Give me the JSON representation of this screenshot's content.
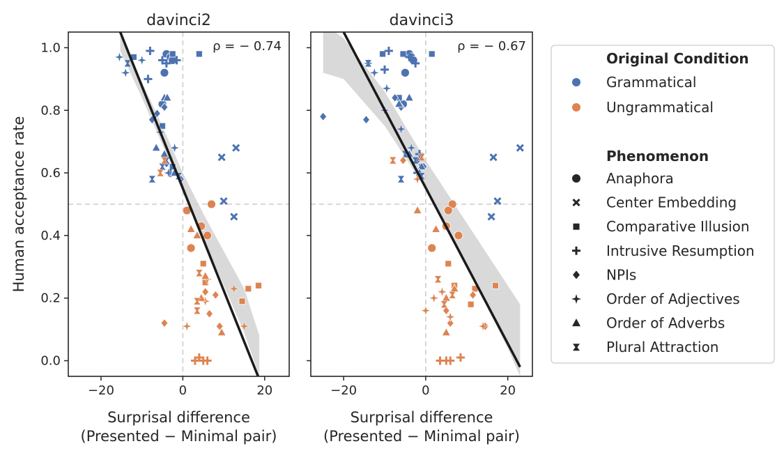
{
  "chart_data": [
    {
      "type": "scatter",
      "title": "davinci2",
      "xlabel": "Surprisal difference\n(Presented − Minimal pair)",
      "ylabel": "Human acceptance rate",
      "annotation": "ρ = − 0.74",
      "xlim": [
        -28,
        26
      ],
      "ylim": [
        -0.05,
        1.05
      ],
      "xticks": [
        "−20",
        "0",
        "20"
      ],
      "yticks": [
        "0.0",
        "0.2",
        "0.4",
        "0.6",
        "0.8",
        "1.0"
      ],
      "reference_lines": {
        "x": 0,
        "y": 0.5
      },
      "fit_line": {
        "x": [
          -15.3,
          18.7
        ],
        "y": [
          1.05,
          -0.06
        ]
      },
      "confidence_band": {
        "x": [
          -15.3,
          -10,
          -5,
          0,
          5,
          10,
          15,
          18.7
        ],
        "upper": [
          1.05,
          0.89,
          0.75,
          0.6,
          0.47,
          0.35,
          0.23,
          0.08
        ],
        "lower": [
          0.99,
          0.84,
          0.69,
          0.54,
          0.39,
          0.24,
          0.09,
          -0.05
        ]
      },
      "series": [
        {
          "condition": "Grammatical",
          "points": [
            [
              -4,
              0.98,
              "Anaphora"
            ],
            [
              -3,
              0.97,
              "Anaphora"
            ],
            [
              -4.5,
              0.92,
              "Anaphora"
            ],
            [
              -5,
              0.82,
              "Anaphora"
            ],
            [
              -2.5,
              0.96,
              "Anaphora"
            ],
            [
              13,
              0.68,
              "Center Embedding"
            ],
            [
              9.5,
              0.65,
              "Center Embedding"
            ],
            [
              10,
              0.51,
              "Center Embedding"
            ],
            [
              12.5,
              0.46,
              "Center Embedding"
            ],
            [
              -12,
              0.97,
              "Comparative Illusion"
            ],
            [
              -2.5,
              0.98,
              "Comparative Illusion"
            ],
            [
              4,
              0.98,
              "Comparative Illusion"
            ],
            [
              -5,
              0.75,
              "Comparative Illusion"
            ],
            [
              -2.5,
              0.62,
              "Comparative Illusion"
            ],
            [
              -8,
              0.99,
              "Intrusive Resumption"
            ],
            [
              -8.5,
              0.9,
              "Intrusive Resumption"
            ],
            [
              -5,
              0.96,
              "Intrusive Resumption"
            ],
            [
              -4,
              0.95,
              "Intrusive Resumption"
            ],
            [
              -1.5,
              0.96,
              "Intrusive Resumption"
            ],
            [
              -3,
              0.6,
              "Intrusive Resumption"
            ],
            [
              -7,
              0.78,
              "NPIs"
            ],
            [
              -6.3,
              0.79,
              "NPIs"
            ],
            [
              -7.5,
              0.77,
              "NPIs"
            ],
            [
              -4.5,
              0.81,
              "NPIs"
            ],
            [
              -4,
              0.63,
              "NPIs"
            ],
            [
              -0.5,
              0.58,
              "NPIs"
            ],
            [
              -15.5,
              0.97,
              "Order of Adjectives"
            ],
            [
              -14,
              0.92,
              "Order of Adjectives"
            ],
            [
              -10,
              0.96,
              "Order of Adjectives"
            ],
            [
              -5.5,
              0.73,
              "Order of Adjectives"
            ],
            [
              -2,
              0.68,
              "Order of Adjectives"
            ],
            [
              -3.5,
              0.6,
              "Order of Adjectives"
            ],
            [
              -4.5,
              0.84,
              "Order of Adverbs"
            ],
            [
              -3.8,
              0.84,
              "Order of Adverbs"
            ],
            [
              -6.5,
              0.68,
              "Order of Adverbs"
            ],
            [
              -4.5,
              0.66,
              "Order of Adverbs"
            ],
            [
              -2,
              0.6,
              "Order of Adverbs"
            ],
            [
              -13.5,
              0.95,
              "Plural Attraction"
            ],
            [
              -7.5,
              0.58,
              "Plural Attraction"
            ],
            [
              -4,
              0.64,
              "Plural Attraction"
            ],
            [
              -1,
              0.59,
              "Plural Attraction"
            ],
            [
              -5,
              0.62,
              "Plural Attraction"
            ]
          ]
        },
        {
          "condition": "Ungrammatical",
          "points": [
            [
              7,
              0.5,
              "Anaphora"
            ],
            [
              1,
              0.48,
              "Anaphora"
            ],
            [
              4.5,
              0.43,
              "Anaphora"
            ],
            [
              6,
              0.4,
              "Anaphora"
            ],
            [
              2,
              0.36,
              "Anaphora"
            ],
            [
              5,
              0.31,
              "Comparative Illusion"
            ],
            [
              18.5,
              0.24,
              "Comparative Illusion"
            ],
            [
              16,
              0.23,
              "Comparative Illusion"
            ],
            [
              14.5,
              0.19,
              "Comparative Illusion"
            ],
            [
              5.5,
              0.25,
              "Comparative Illusion"
            ],
            [
              4,
              0.01,
              "Intrusive Resumption"
            ],
            [
              5,
              0.0,
              "Intrusive Resumption"
            ],
            [
              6,
              0.0,
              "Intrusive Resumption"
            ],
            [
              3,
              0.0,
              "Intrusive Resumption"
            ],
            [
              -4.5,
              0.12,
              "NPIs"
            ],
            [
              8,
              0.21,
              "NPIs"
            ],
            [
              9,
              0.11,
              "NPIs"
            ],
            [
              6.5,
              0.15,
              "NPIs"
            ],
            [
              5.5,
              0.22,
              "NPIs"
            ],
            [
              12.5,
              0.23,
              "Order of Adjectives"
            ],
            [
              15,
              0.11,
              "Order of Adjectives"
            ],
            [
              4.5,
              0.2,
              "Order of Adjectives"
            ],
            [
              1,
              0.11,
              "Order of Adjectives"
            ],
            [
              6,
              0.26,
              "Order of Adjectives"
            ],
            [
              5.5,
              0.19,
              "Order of Adjectives"
            ],
            [
              2,
              0.42,
              "Order of Adverbs"
            ],
            [
              3.5,
              0.4,
              "Order of Adverbs"
            ],
            [
              4.5,
              0.2,
              "Order of Adverbs"
            ],
            [
              9.5,
              0.09,
              "Order of Adverbs"
            ],
            [
              5.5,
              0.27,
              "Order of Adverbs"
            ],
            [
              -4.5,
              0.64,
              "Plural Attraction"
            ],
            [
              -5.5,
              0.6,
              "Plural Attraction"
            ],
            [
              3.5,
              0.16,
              "Plural Attraction"
            ],
            [
              4,
              0.28,
              "Plural Attraction"
            ],
            [
              3.5,
              0.19,
              "Plural Attraction"
            ]
          ]
        }
      ]
    },
    {
      "type": "scatter",
      "title": "davinci3",
      "xlabel": "Surprisal difference\n(Presented − Minimal pair)",
      "ylabel": "",
      "annotation": "ρ = − 0.67",
      "xlim": [
        -28,
        26
      ],
      "ylim": [
        -0.05,
        1.05
      ],
      "xticks": [
        "−20",
        "0",
        "20"
      ],
      "yticks": [
        "0.0",
        "0.2",
        "0.4",
        "0.6",
        "0.8",
        "1.0"
      ],
      "reference_lines": {
        "x": 0,
        "y": 0.5
      },
      "fit_line": {
        "x": [
          -20,
          23
        ],
        "y": [
          1.05,
          -0.02
        ]
      },
      "confidence_band": {
        "x": [
          -25,
          -20,
          -10,
          0,
          10,
          20,
          23
        ],
        "upper": [
          1.08,
          1.03,
          0.86,
          0.64,
          0.44,
          0.24,
          0.18
        ],
        "lower": [
          0.92,
          0.9,
          0.75,
          0.55,
          0.3,
          0.04,
          -0.05
        ]
      },
      "series": [
        {
          "condition": "Grammatical",
          "points": [
            [
              -4,
              0.98,
              "Anaphora"
            ],
            [
              -3.5,
              0.97,
              "Anaphora"
            ],
            [
              -5,
              0.92,
              "Anaphora"
            ],
            [
              -5.5,
              0.82,
              "Anaphora"
            ],
            [
              -3,
              0.96,
              "Anaphora"
            ],
            [
              23,
              0.68,
              "Center Embedding"
            ],
            [
              16.5,
              0.65,
              "Center Embedding"
            ],
            [
              17.5,
              0.51,
              "Center Embedding"
            ],
            [
              16,
              0.46,
              "Center Embedding"
            ],
            [
              -10.5,
              0.98,
              "Comparative Illusion"
            ],
            [
              -5.5,
              0.98,
              "Comparative Illusion"
            ],
            [
              1.5,
              0.98,
              "Comparative Illusion"
            ],
            [
              -6.5,
              0.84,
              "Comparative Illusion"
            ],
            [
              -1,
              0.62,
              "Comparative Illusion"
            ],
            [
              -9,
              0.99,
              "Intrusive Resumption"
            ],
            [
              -10,
              0.93,
              "Intrusive Resumption"
            ],
            [
              -4,
              0.97,
              "Intrusive Resumption"
            ],
            [
              -2.5,
              0.95,
              "Intrusive Resumption"
            ],
            [
              -1.5,
              0.66,
              "Intrusive Resumption"
            ],
            [
              -2,
              0.6,
              "Intrusive Resumption"
            ],
            [
              -25,
              0.78,
              "NPIs"
            ],
            [
              -14.5,
              0.77,
              "NPIs"
            ],
            [
              -7.5,
              0.84,
              "NPIs"
            ],
            [
              -6,
              0.81,
              "NPIs"
            ],
            [
              -2,
              0.64,
              "NPIs"
            ],
            [
              -0.5,
              0.62,
              "NPIs"
            ],
            [
              -12.5,
              0.92,
              "Order of Adjectives"
            ],
            [
              -14,
              0.95,
              "Order of Adjectives"
            ],
            [
              -9.5,
              0.87,
              "Order of Adjectives"
            ],
            [
              -10,
              0.8,
              "Order of Adjectives"
            ],
            [
              -6,
              0.74,
              "Order of Adjectives"
            ],
            [
              -3.5,
              0.68,
              "Order of Adjectives"
            ],
            [
              -4,
              0.84,
              "Order of Adverbs"
            ],
            [
              -6.5,
              0.82,
              "Order of Adverbs"
            ],
            [
              -4,
              0.66,
              "Order of Adverbs"
            ],
            [
              -1,
              0.62,
              "Order of Adverbs"
            ],
            [
              -1.5,
              0.6,
              "Order of Adverbs"
            ],
            [
              -14,
              0.95,
              "Plural Attraction"
            ],
            [
              -6,
              0.58,
              "Plural Attraction"
            ],
            [
              -2.5,
              0.64,
              "Plural Attraction"
            ],
            [
              -1,
              0.59,
              "Plural Attraction"
            ],
            [
              -5,
              0.66,
              "Plural Attraction"
            ]
          ]
        },
        {
          "condition": "Ungrammatical",
          "points": [
            [
              6.5,
              0.5,
              "Anaphora"
            ],
            [
              5.5,
              0.48,
              "Anaphora"
            ],
            [
              5,
              0.43,
              "Anaphora"
            ],
            [
              8,
              0.4,
              "Anaphora"
            ],
            [
              1.5,
              0.36,
              "Anaphora"
            ],
            [
              5.5,
              0.31,
              "Comparative Illusion"
            ],
            [
              17,
              0.24,
              "Comparative Illusion"
            ],
            [
              12,
              0.23,
              "Comparative Illusion"
            ],
            [
              11,
              0.18,
              "Comparative Illusion"
            ],
            [
              7,
              0.24,
              "Comparative Illusion"
            ],
            [
              5,
              0.0,
              "Intrusive Resumption"
            ],
            [
              6,
              0.0,
              "Intrusive Resumption"
            ],
            [
              8.5,
              0.01,
              "Intrusive Resumption"
            ],
            [
              3.5,
              0.0,
              "Intrusive Resumption"
            ],
            [
              -5.5,
              0.64,
              "NPIs"
            ],
            [
              14.5,
              0.11,
              "NPIs"
            ],
            [
              6,
              0.12,
              "NPIs"
            ],
            [
              11.5,
              0.21,
              "NPIs"
            ],
            [
              5,
              0.16,
              "NPIs"
            ],
            [
              -2,
              0.58,
              "Order of Adjectives"
            ],
            [
              14,
              0.11,
              "Order of Adjectives"
            ],
            [
              2,
              0.2,
              "Order of Adjectives"
            ],
            [
              0,
              0.16,
              "Order of Adjectives"
            ],
            [
              4,
              0.22,
              "Order of Adjectives"
            ],
            [
              6,
              0.14,
              "Order of Adjectives"
            ],
            [
              -2,
              0.48,
              "Order of Adverbs"
            ],
            [
              2.5,
              0.42,
              "Order of Adverbs"
            ],
            [
              5,
              0.09,
              "Order of Adverbs"
            ],
            [
              7,
              0.23,
              "Order of Adverbs"
            ],
            [
              5,
              0.2,
              "Order of Adverbs"
            ],
            [
              -8,
              0.64,
              "Plural Attraction"
            ],
            [
              -1,
              0.65,
              "Plural Attraction"
            ],
            [
              4.5,
              0.18,
              "Plural Attraction"
            ],
            [
              3,
              0.26,
              "Plural Attraction"
            ],
            [
              6.5,
              0.21,
              "Plural Attraction"
            ]
          ]
        }
      ]
    }
  ],
  "legend": {
    "condition_title": "Original Condition",
    "conditions": [
      {
        "label": "Grammatical",
        "color": "#4c72b0"
      },
      {
        "label": "Ungrammatical",
        "color": "#dd8452"
      }
    ],
    "phenomenon_title": "Phenomenon",
    "phenomena": [
      {
        "label": "Anaphora",
        "marker": "circle"
      },
      {
        "label": "Center Embedding",
        "marker": "x"
      },
      {
        "label": "Comparative Illusion",
        "marker": "square"
      },
      {
        "label": "Intrusive Resumption",
        "marker": "plus"
      },
      {
        "label": "NPIs",
        "marker": "diamond"
      },
      {
        "label": "Order of Adjectives",
        "marker": "star4"
      },
      {
        "label": "Order of Adverbs",
        "marker": "triangle"
      },
      {
        "label": "Plural Attraction",
        "marker": "bowtie"
      }
    ]
  }
}
